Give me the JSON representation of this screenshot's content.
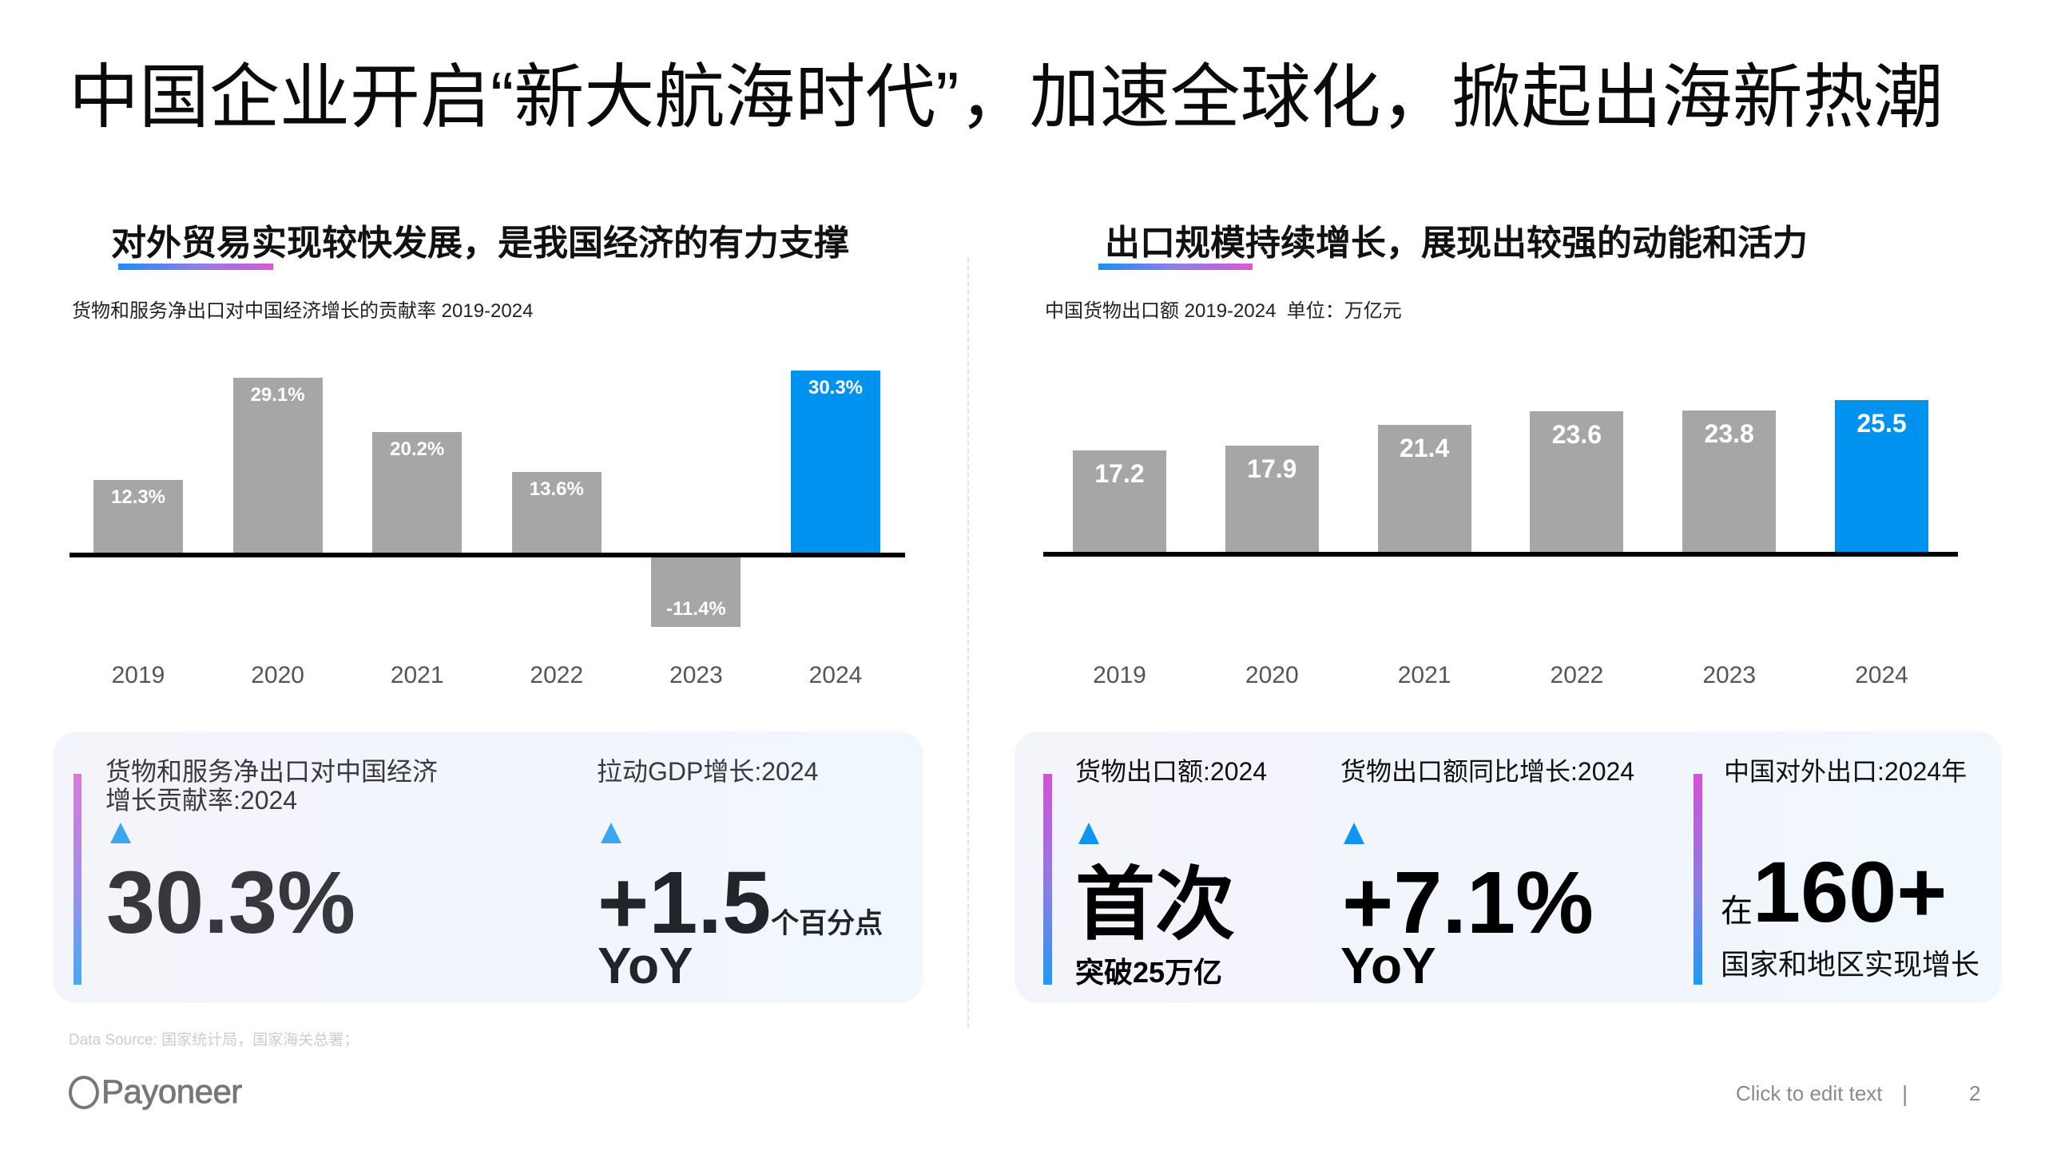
{
  "slide": {
    "title": "中国企业开启“新大航海时代”，加速全球化，掀起出海新热潮"
  },
  "left_panel": {
    "heading": "对外贸易实现较快发展，是我国经济的有力支撑",
    "caption": "货物和服务净出口对中国经济增长的贡献率 2019-2024",
    "kpi_card": {
      "items": [
        {
          "label": "货物和服务净出口对中国经济\n增长贡献率:2024",
          "indicator": "up-triangle",
          "value": "30.3%"
        },
        {
          "label": "拉动GDP增长:2024",
          "indicator": "up-triangle",
          "value": "+1.5",
          "unit": "个百分点",
          "suffix": "YoY"
        }
      ]
    }
  },
  "right_panel": {
    "heading": "出口规模持续增长，展现出较强的动能和活力",
    "caption": "中国货物出口额 2019-2024  单位：万亿元",
    "kpi_card": {
      "items": [
        {
          "label": "货物出口额:2024",
          "indicator": "up-triangle",
          "value": "首次",
          "subtext": "突破25万亿"
        },
        {
          "label": "货物出口额同比增长:2024",
          "indicator": "up-triangle",
          "value": "+7.1%",
          "suffix": "YoY"
        },
        {
          "label": "中国对外出口:2024年",
          "prefix": "在",
          "value": "160+",
          "subtext": "国家和地区实现增长"
        }
      ]
    }
  },
  "footer": {
    "data_source": "Data Source: 国家统计局，国家海关总署；",
    "logo_text": "Payoneer",
    "edit_hint": "Click to edit text",
    "separator": "|",
    "page_number": "2"
  },
  "icons": {
    "kpi_indicator": "up-triangle",
    "logo_mark": "payoneer-circle"
  },
  "colors": {
    "accent_blue": "#0092ef",
    "bar_gray": "#a6a6a6",
    "axis": "#000000",
    "underline_gradient": [
      "#1a90f0",
      "#da58d8"
    ],
    "kpi_bar_gradient": [
      "#d650d8",
      "#1e9af4"
    ],
    "indicator": "#0d95f0",
    "card_bg": [
      "#f4f4fb",
      "#f0f8fd"
    ]
  },
  "chart_data": [
    {
      "type": "bar",
      "title": "货物和服务净出口对中国经济增长的贡献率 2019-2024",
      "xlabel": "",
      "ylabel": "",
      "categories": [
        "2019",
        "2020",
        "2021",
        "2022",
        "2023",
        "2024"
      ],
      "values": [
        12.3,
        29.1,
        20.2,
        13.6,
        -11.4,
        30.3
      ],
      "data_labels": [
        "12.3%",
        "29.1%",
        "20.2%",
        "13.6%",
        "-11.4%",
        "30.3%"
      ],
      "unit": "%",
      "highlight_index": 5,
      "ylim": [
        -11.4,
        30.3
      ],
      "grid": false,
      "legend": "none",
      "colors": {
        "bar": "#a6a6a6",
        "highlight": "#0092ef"
      }
    },
    {
      "type": "bar",
      "title": "中国货物出口额 2019-2024  单位：万亿元",
      "xlabel": "",
      "ylabel": "万亿元",
      "categories": [
        "2019",
        "2020",
        "2021",
        "2022",
        "2023",
        "2024"
      ],
      "values": [
        17.2,
        17.9,
        21.4,
        23.6,
        23.8,
        25.5
      ],
      "data_labels": [
        "17.2",
        "17.9",
        "21.4",
        "23.6",
        "23.8",
        "25.5"
      ],
      "unit": "万亿元",
      "highlight_index": 5,
      "ylim": [
        0,
        25.5
      ],
      "grid": false,
      "legend": "none",
      "colors": {
        "bar": "#a6a6a6",
        "highlight": "#0092ef"
      }
    }
  ]
}
